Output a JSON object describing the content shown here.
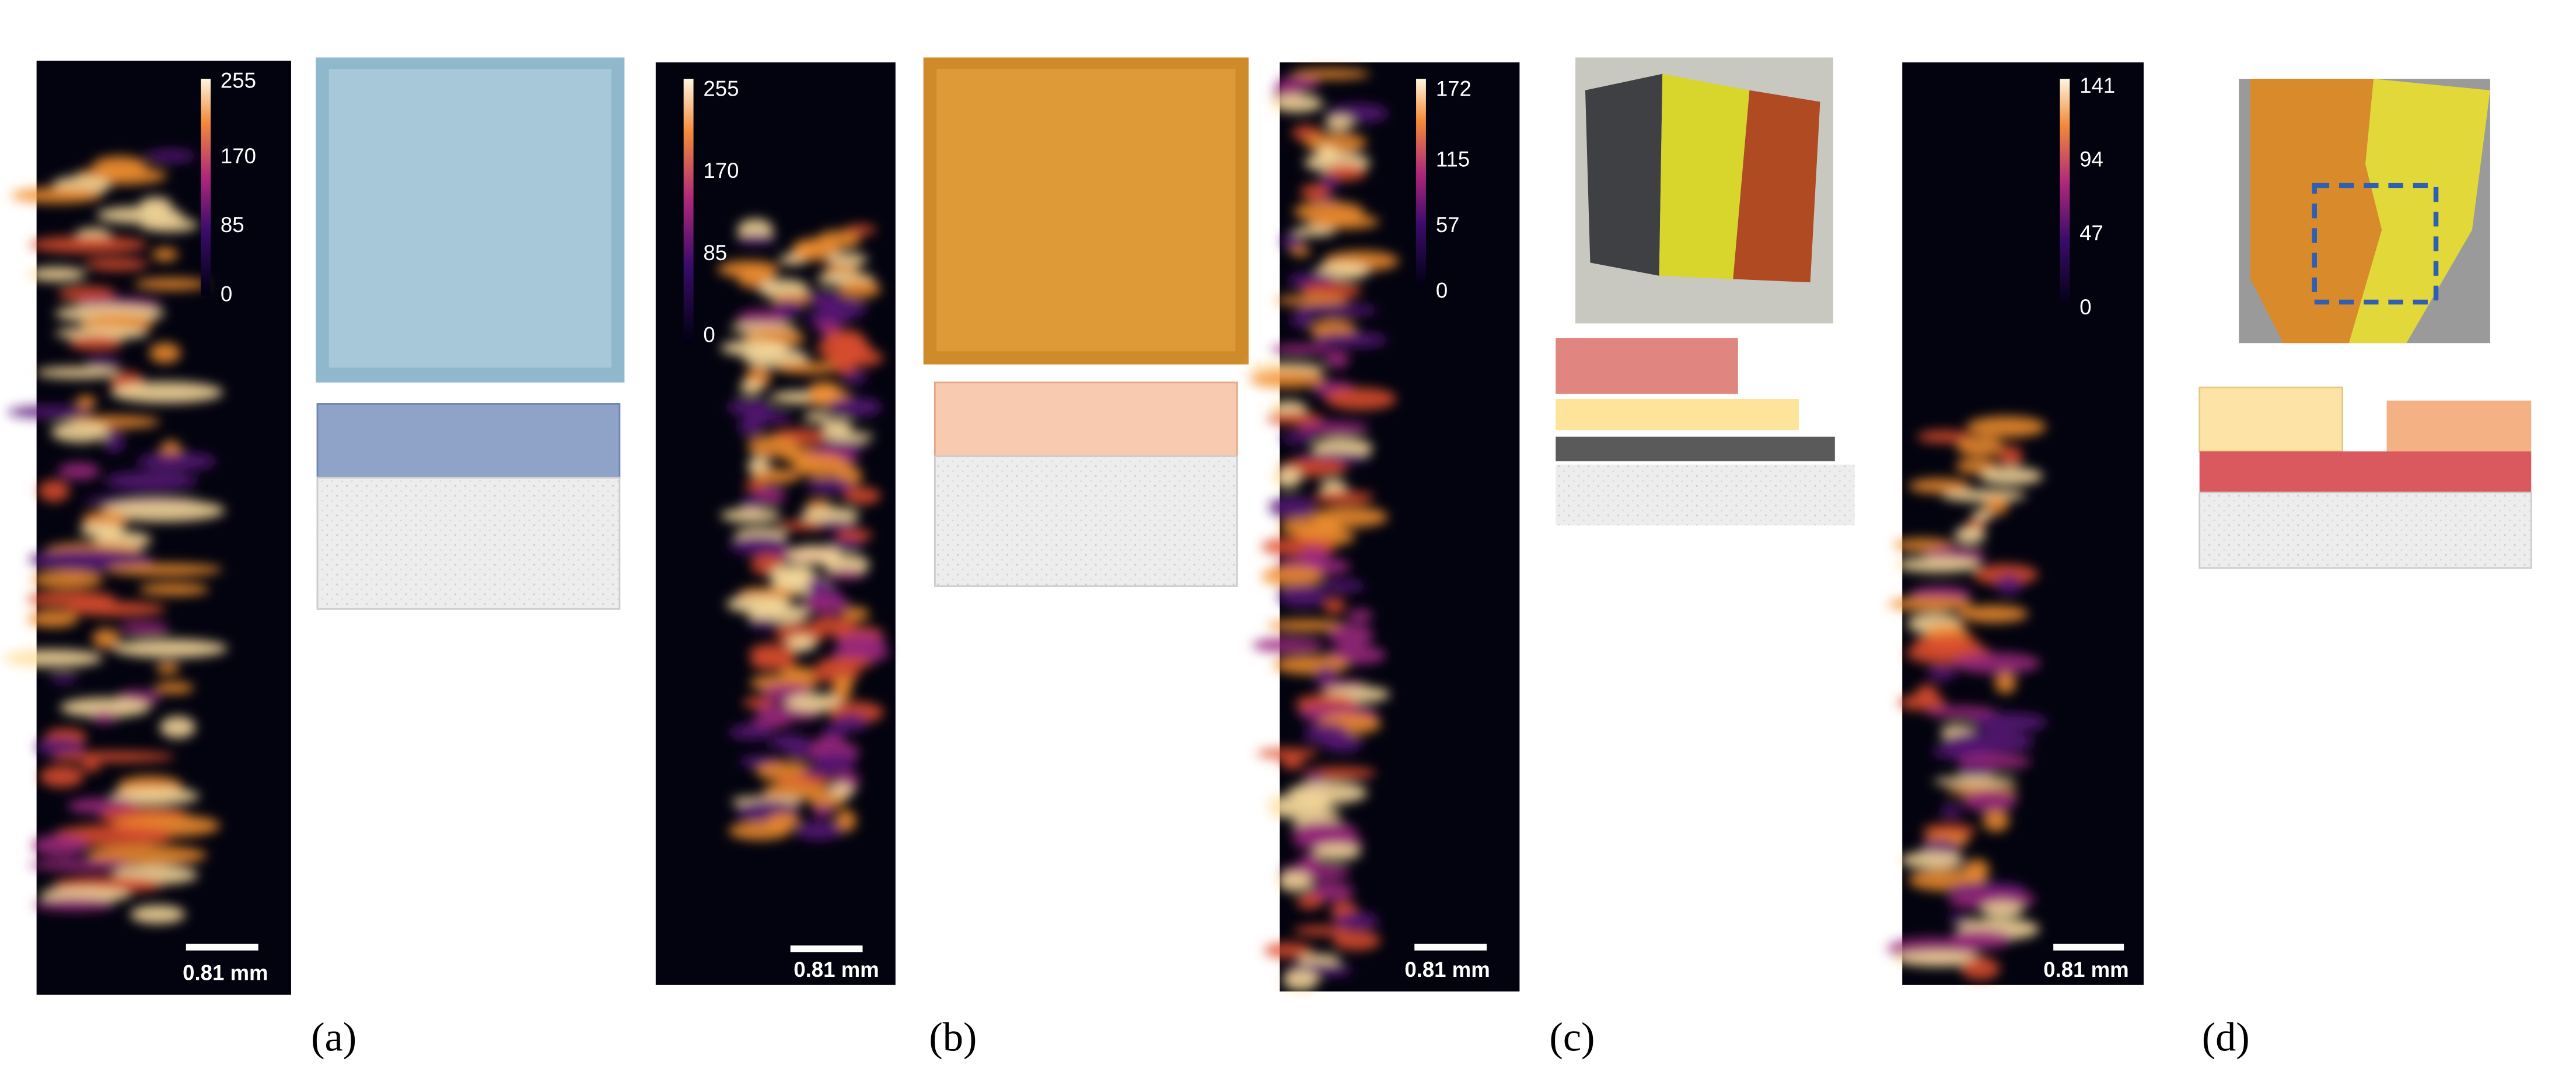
{
  "panels": [
    {
      "label": "(a)",
      "colorbar_ticks": [
        "255",
        "170",
        "85",
        "0"
      ],
      "scale_bar": "0.81 mm"
    },
    {
      "label": "(b)",
      "colorbar_ticks": [
        "255",
        "170",
        "85",
        "0"
      ],
      "scale_bar": "0.81 mm"
    },
    {
      "label": "(c)",
      "colorbar_ticks": [
        "172",
        "115",
        "57",
        "0"
      ],
      "scale_bar": "0.81 mm"
    },
    {
      "label": "(d)",
      "colorbar_ticks": [
        "141",
        "94",
        "47",
        "0"
      ],
      "scale_bar": "0.81 mm"
    }
  ]
}
